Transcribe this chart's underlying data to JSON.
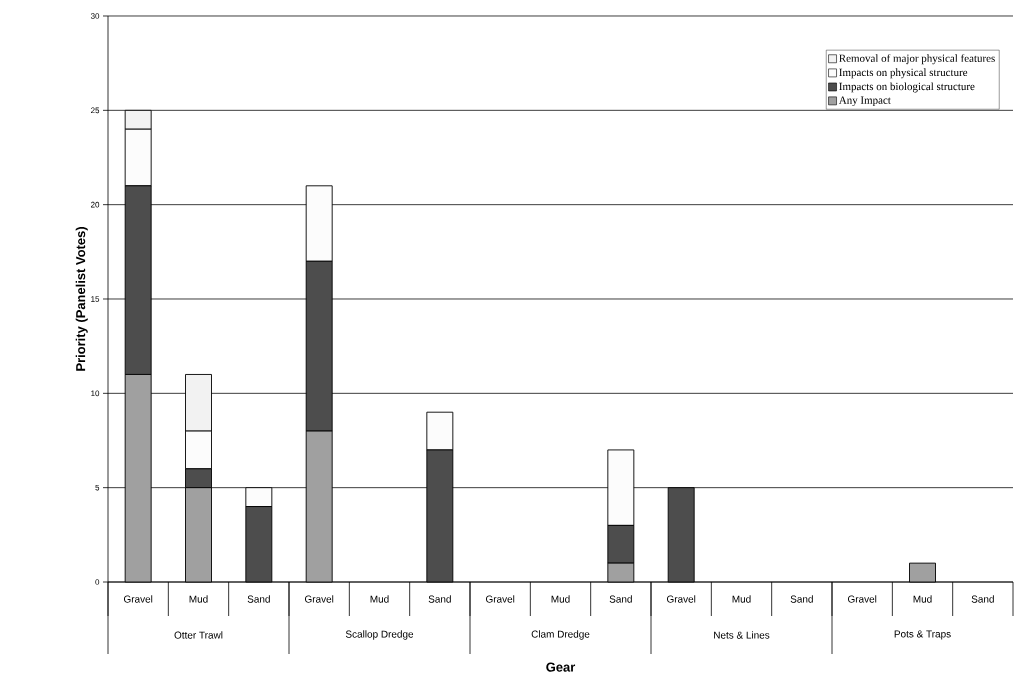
{
  "chart_data": {
    "type": "bar",
    "stacked": true,
    "xlabel": "Gear",
    "ylabel": "Priority (Panelist Votes)",
    "categories": [
      "Gravel",
      "Mud",
      "Sand",
      "Gravel",
      "Mud",
      "Sand",
      "Gravel",
      "Mud",
      "Sand",
      "Gravel",
      "Mud",
      "Sand",
      "Gravel",
      "Mud",
      "Sand"
    ],
    "annotations": [
      "Otter Trawl",
      "Scallop Dredge",
      "Clam Dredge",
      "Nets & Lines",
      "Pots & Traps"
    ],
    "series": [
      {
        "name": "Any Impact",
        "color": "#a0a0a0",
        "values": [
          11,
          5,
          0,
          8,
          0,
          0,
          0,
          0,
          1,
          0,
          0,
          0,
          0,
          1,
          0
        ]
      },
      {
        "name": "Impacts on biological structure",
        "color": "#4d4d4d",
        "values": [
          10,
          1,
          4,
          9,
          0,
          7,
          0,
          0,
          2,
          5,
          0,
          0,
          0,
          0,
          0
        ]
      },
      {
        "name": "Impacts on physical structure",
        "color": "#fcfcfc",
        "values": [
          3,
          2,
          1,
          4,
          0,
          2,
          0,
          0,
          4,
          0,
          0,
          0,
          0,
          0,
          0
        ]
      },
      {
        "name": "Removal of major physical features",
        "color": "#f2f2f2",
        "values": [
          1,
          3,
          0,
          0,
          0,
          0,
          0,
          0,
          0,
          0,
          0,
          0,
          0,
          0,
          0
        ]
      }
    ],
    "ylim": [
      0,
      30
    ],
    "yticks": [
      0,
      5,
      10,
      15,
      20,
      25,
      30
    ],
    "grid": "y",
    "legend": "top right"
  }
}
